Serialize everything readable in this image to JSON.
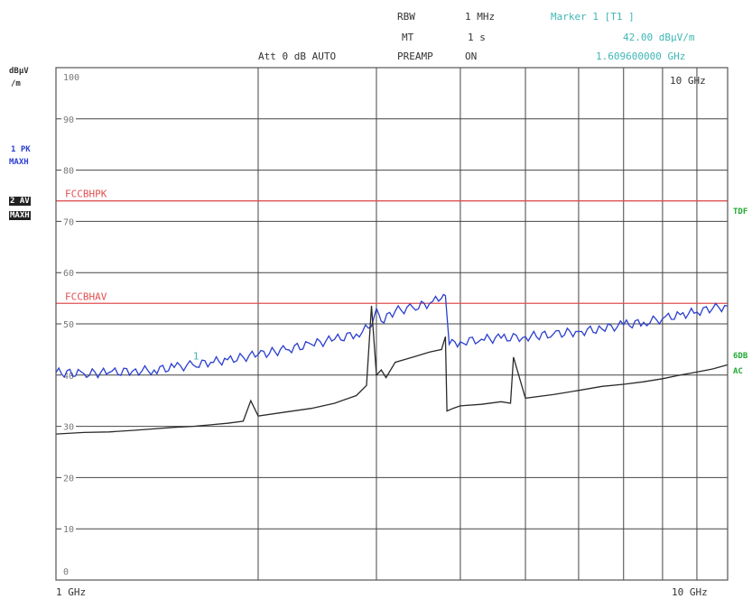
{
  "header": {
    "rbw_label": "RBW",
    "rbw_value": "1 MHz",
    "mt_label": "MT",
    "mt_value": "1 s",
    "att": "Att  0 dB AUTO",
    "preamp_label": "PREAMP",
    "preamp_value": "ON",
    "marker_title": "Marker 1 [T1 ]",
    "marker_level": "42.00 dBµV/m",
    "marker_freq": "1.609600000 GHz"
  },
  "side": {
    "unit_line1": "dBµV",
    "unit_line2": "/m",
    "trace1_line1": "1 PK",
    "trace1_line2": "MAXH",
    "trace2_line1": "2 AV",
    "trace2_line2": "MAXH",
    "right_tag1": "TDF",
    "right_tag2": "6DB",
    "right_tag3": "AC"
  },
  "chart_data": {
    "type": "line",
    "xscale": "log",
    "xunit": "GHz",
    "xlim": [
      1,
      10
    ],
    "ylim": [
      0,
      100
    ],
    "y_ticks": [
      0,
      10,
      20,
      30,
      40,
      50,
      60,
      70,
      80,
      90,
      100
    ],
    "x_start_label": "1 GHz",
    "x_end_label": "10 GHz",
    "x_top_right_label": "10 GHz",
    "limit_lines": [
      {
        "name": "FCCBHPK",
        "value": 74,
        "color": "#e05050"
      },
      {
        "name": "FCCBHAV",
        "value": 54,
        "color": "#e05050"
      }
    ],
    "marker": {
      "label": "1",
      "x": 1.6096,
      "y": 42.0
    },
    "series": [
      {
        "id": "pk",
        "color": "#2b3fd0",
        "x": [
          1.0,
          1.1,
          1.2,
          1.3,
          1.4,
          1.5,
          1.6,
          1.7,
          1.8,
          1.9,
          2.0,
          2.2,
          2.4,
          2.6,
          2.8,
          2.95,
          3.0,
          3.05,
          3.2,
          3.4,
          3.6,
          3.75,
          3.8,
          3.85,
          4.0,
          4.3,
          4.6,
          5.0,
          5.5,
          6.0,
          6.5,
          7.0,
          7.5,
          8.0,
          8.5,
          9.0,
          9.5,
          10.0
        ],
        "y": [
          40.5,
          40.3,
          40.5,
          40.8,
          41.0,
          41.5,
          42.0,
          42.5,
          43.0,
          43.5,
          44.0,
          45.0,
          46.0,
          47.0,
          48.0,
          49.5,
          53.0,
          50.5,
          52.5,
          53.2,
          54.0,
          55.0,
          55.5,
          46.0,
          46.5,
          47.0,
          47.2,
          47.5,
          48.0,
          48.5,
          49.0,
          49.8,
          50.3,
          51.0,
          51.8,
          52.3,
          53.0,
          53.5
        ]
      },
      {
        "id": "av",
        "color": "#2a2a2a",
        "x": [
          1.0,
          1.1,
          1.2,
          1.3,
          1.4,
          1.5,
          1.6,
          1.7,
          1.8,
          1.9,
          1.95,
          2.0,
          2.2,
          2.4,
          2.6,
          2.8,
          2.9,
          2.95,
          3.0,
          3.05,
          3.1,
          3.2,
          3.4,
          3.6,
          3.75,
          3.8,
          3.82,
          3.9,
          4.0,
          4.3,
          4.6,
          4.75,
          4.8,
          5.0,
          5.5,
          6.0,
          6.5,
          7.0,
          7.5,
          8.0,
          8.5,
          9.0,
          9.5,
          10.0
        ],
        "y": [
          28.5,
          28.8,
          28.9,
          29.2,
          29.5,
          29.8,
          30.0,
          30.3,
          30.6,
          31.0,
          35.0,
          32.0,
          32.8,
          33.5,
          34.5,
          36.0,
          38.0,
          53.5,
          40.0,
          41.0,
          39.5,
          42.5,
          43.5,
          44.5,
          45.0,
          47.5,
          33.0,
          33.5,
          34.0,
          34.3,
          34.8,
          34.5,
          43.5,
          35.5,
          36.2,
          37.0,
          37.8,
          38.2,
          38.7,
          39.3,
          40.0,
          40.6,
          41.2,
          42.0
        ]
      }
    ]
  }
}
